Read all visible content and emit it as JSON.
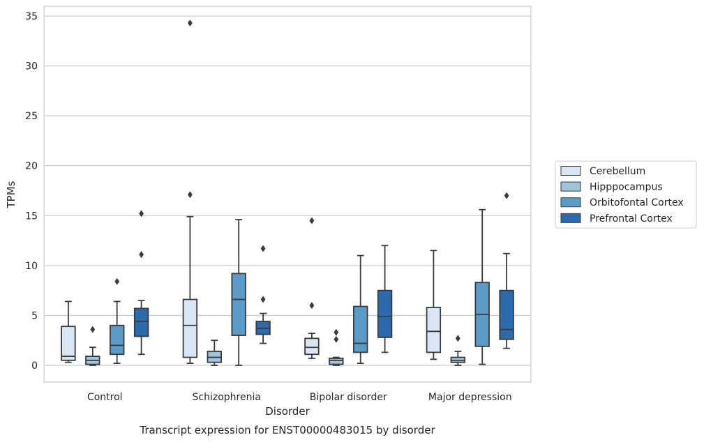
{
  "caption": "Transcript expression for ENST00000483015 by disorder",
  "chart_data": {
    "type": "box",
    "xlabel": "Disorder",
    "ylabel": "TPMs",
    "ylim": [
      -1.7,
      36
    ],
    "yticks": [
      0,
      5,
      10,
      15,
      20,
      25,
      30,
      35
    ],
    "grid": "horizontal",
    "legend_position": "right",
    "categories": [
      "Control",
      "Schizophrenia",
      "Bipolar disorder",
      "Major depression"
    ],
    "series": [
      {
        "name": "Cerebellum",
        "color": "#d8e5f2",
        "boxes": [
          {
            "whislo": 0.3,
            "q1": 0.5,
            "med": 0.9,
            "q3": 3.9,
            "whishi": 6.4,
            "fliers": []
          },
          {
            "whislo": 0.2,
            "q1": 0.8,
            "med": 4.0,
            "q3": 6.6,
            "whishi": 14.9,
            "fliers": [
              17.1,
              34.3
            ]
          },
          {
            "whislo": 0.7,
            "q1": 1.1,
            "med": 1.8,
            "q3": 2.7,
            "whishi": 3.2,
            "fliers": [
              6.0,
              14.5
            ]
          },
          {
            "whislo": 0.6,
            "q1": 1.3,
            "med": 3.4,
            "q3": 5.8,
            "whishi": 11.5,
            "fliers": []
          }
        ]
      },
      {
        "name": "Hipppocampus",
        "color": "#a1c4de",
        "boxes": [
          {
            "whislo": 0.0,
            "q1": 0.1,
            "med": 0.5,
            "q3": 0.9,
            "whishi": 1.8,
            "fliers": [
              3.6
            ]
          },
          {
            "whislo": 0.0,
            "q1": 0.3,
            "med": 0.8,
            "q3": 1.4,
            "whishi": 2.5,
            "fliers": []
          },
          {
            "whislo": 0.0,
            "q1": 0.1,
            "med": 0.5,
            "q3": 0.7,
            "whishi": 0.8,
            "fliers": [
              2.6,
              3.3
            ]
          },
          {
            "whislo": 0.0,
            "q1": 0.3,
            "med": 0.5,
            "q3": 0.8,
            "whishi": 1.4,
            "fliers": [
              2.7
            ]
          }
        ]
      },
      {
        "name": "Orbitofontal Cortex",
        "color": "#5b9bc8",
        "boxes": [
          {
            "whislo": 0.2,
            "q1": 1.1,
            "med": 2.0,
            "q3": 4.0,
            "whishi": 6.4,
            "fliers": [
              8.4
            ]
          },
          {
            "whislo": 0.0,
            "q1": 3.0,
            "med": 6.6,
            "q3": 9.2,
            "whishi": 14.6,
            "fliers": []
          },
          {
            "whislo": 0.2,
            "q1": 1.3,
            "med": 2.2,
            "q3": 5.9,
            "whishi": 11.0,
            "fliers": []
          },
          {
            "whislo": 0.1,
            "q1": 1.9,
            "med": 5.1,
            "q3": 8.3,
            "whishi": 15.6,
            "fliers": []
          }
        ]
      },
      {
        "name": "Prefrontal Cortex",
        "color": "#2c6aad",
        "boxes": [
          {
            "whislo": 1.1,
            "q1": 2.9,
            "med": 4.4,
            "q3": 5.7,
            "whishi": 6.5,
            "fliers": [
              11.1,
              15.2
            ]
          },
          {
            "whislo": 2.2,
            "q1": 3.1,
            "med": 3.7,
            "q3": 4.4,
            "whishi": 5.2,
            "fliers": [
              6.6,
              11.7
            ]
          },
          {
            "whislo": 1.3,
            "q1": 2.8,
            "med": 4.9,
            "q3": 7.5,
            "whishi": 12.0,
            "fliers": []
          },
          {
            "whislo": 1.7,
            "q1": 2.6,
            "med": 3.6,
            "q3": 7.5,
            "whishi": 11.2,
            "fliers": [
              17.0
            ]
          }
        ]
      }
    ]
  }
}
